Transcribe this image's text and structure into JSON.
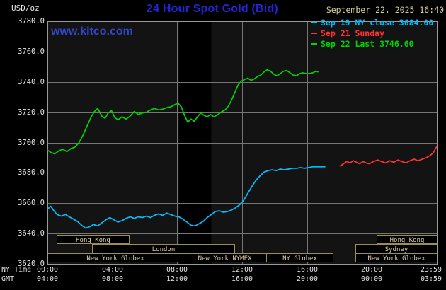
{
  "header": {
    "units_label": "USD/oz",
    "title": "24 Hour Spot Gold (Bid)",
    "datetime": "September 22, 2025 16:40",
    "website": "www.kitco.com"
  },
  "colors": {
    "title": "#2424d6",
    "website_link": "#3347cc",
    "tan_text": "#d9cfa3",
    "white_text": "#e6e6e6",
    "plot_bg": "#131313",
    "band": "#000000",
    "grid": "#757575",
    "border": "#9a9a9a",
    "session_border": "#9a8f4f",
    "session_text": "#d9cfa3",
    "cyan": "#00bfff",
    "red": "#ff3434",
    "green": "#00d400"
  },
  "legend": [
    {
      "marker_color": "#00bfff",
      "label": "Sep 19 NY close 3684.00"
    },
    {
      "marker_color": "#ff3434",
      "label": "Sep 21 Sunday"
    },
    {
      "marker_color": "#00d400",
      "label": "Sep 22 Last 3746.60"
    }
  ],
  "market_sessions": {
    "rows": [
      [
        {
          "label": "Hong Kong",
          "start": 0.55,
          "end": 5.0
        },
        {
          "label": "Hong Kong",
          "start": 20.3,
          "end": 24
        }
      ],
      [
        {
          "label": "London",
          "start": 2.75,
          "end": 11.5
        },
        {
          "label": "Sydney",
          "start": 19.0,
          "end": 24
        }
      ],
      [
        {
          "label": "New York Globex",
          "start": 0,
          "end": 8.33
        },
        {
          "label": "New York NYMEX",
          "start": 8.33,
          "end": 13.5
        },
        {
          "label": "NY Globex",
          "start": 13.5,
          "end": 17.6
        },
        {
          "label": "New York Globex",
          "start": 19.0,
          "end": 24
        }
      ]
    ]
  },
  "chart_data": {
    "type": "line",
    "title": "24 Hour Spot Gold (Bid)",
    "ylabel": "USD/oz",
    "ylim": [
      3620,
      3780
    ],
    "ytick_step": 20,
    "ytick_labels": [
      "3780.0",
      "3760.0",
      "3740.0",
      "3720.0",
      "3700.0",
      "3680.0",
      "3660.0",
      "3640.0",
      "3620.0"
    ],
    "x_hours_range": [
      0,
      24
    ],
    "xtick_hours": [
      0,
      4,
      8,
      12,
      16,
      20,
      24
    ],
    "x_axis_primary": {
      "name": "NY Time",
      "ticks": [
        "00:00",
        "04:00",
        "08:00",
        "12:00",
        "16:00",
        "20:00",
        "23:59"
      ]
    },
    "x_axis_secondary": {
      "name": "GMT",
      "ticks": [
        "04:00",
        "08:00",
        "12:00",
        "16:00",
        "20:00",
        "00:00",
        "03:59"
      ]
    },
    "grid": true,
    "legend_position": "top-right",
    "shaded_band_hours": [
      8.1,
      10.1
    ],
    "close_value": 3684.0,
    "last_value": 3746.6,
    "series": [
      {
        "id": "sep19-ny-close",
        "name": "Sep 19 NY close",
        "color": "#00bfff",
        "points": [
          [
            0,
            3656
          ],
          [
            0.2,
            3658
          ],
          [
            0.4,
            3655
          ],
          [
            0.6,
            3652.5
          ],
          [
            0.85,
            3651.5
          ],
          [
            1.1,
            3652.5
          ],
          [
            1.35,
            3651
          ],
          [
            1.6,
            3649.5
          ],
          [
            1.85,
            3648
          ],
          [
            2.1,
            3645.5
          ],
          [
            2.35,
            3643.5
          ],
          [
            2.6,
            3644.5
          ],
          [
            2.85,
            3646
          ],
          [
            3.1,
            3645
          ],
          [
            3.35,
            3647
          ],
          [
            3.6,
            3649
          ],
          [
            3.85,
            3650.5
          ],
          [
            4.1,
            3649
          ],
          [
            4.35,
            3647.5
          ],
          [
            4.6,
            3648.5
          ],
          [
            4.85,
            3650
          ],
          [
            5.1,
            3651
          ],
          [
            5.35,
            3650
          ],
          [
            5.6,
            3651
          ],
          [
            5.85,
            3650.5
          ],
          [
            6.1,
            3651.5
          ],
          [
            6.35,
            3650.5
          ],
          [
            6.6,
            3652
          ],
          [
            6.85,
            3653
          ],
          [
            7.1,
            3652
          ],
          [
            7.35,
            3653.5
          ],
          [
            7.6,
            3652.5
          ],
          [
            7.85,
            3651.5
          ],
          [
            8.1,
            3651
          ],
          [
            8.35,
            3649.5
          ],
          [
            8.6,
            3647.5
          ],
          [
            8.85,
            3645.5
          ],
          [
            9.1,
            3645
          ],
          [
            9.35,
            3646.5
          ],
          [
            9.6,
            3648
          ],
          [
            9.85,
            3650.5
          ],
          [
            10.1,
            3652.5
          ],
          [
            10.35,
            3654.5
          ],
          [
            10.6,
            3655
          ],
          [
            10.85,
            3654
          ],
          [
            11.1,
            3654.5
          ],
          [
            11.35,
            3655.5
          ],
          [
            11.6,
            3657
          ],
          [
            11.85,
            3659
          ],
          [
            12.1,
            3662
          ],
          [
            12.35,
            3666.5
          ],
          [
            12.6,
            3671
          ],
          [
            12.85,
            3675
          ],
          [
            13.1,
            3678
          ],
          [
            13.35,
            3680.5
          ],
          [
            13.6,
            3681.5
          ],
          [
            13.85,
            3682
          ],
          [
            14.1,
            3681.5
          ],
          [
            14.35,
            3682.5
          ],
          [
            14.6,
            3682
          ],
          [
            14.85,
            3682.5
          ],
          [
            15.1,
            3683
          ],
          [
            15.35,
            3683
          ],
          [
            15.6,
            3683.5
          ],
          [
            15.85,
            3683
          ],
          [
            16.1,
            3683.5
          ],
          [
            16.35,
            3684
          ],
          [
            16.6,
            3684
          ],
          [
            16.85,
            3684
          ],
          [
            17.1,
            3684
          ]
        ]
      },
      {
        "id": "sep21-sunday",
        "name": "Sep 21 Sunday",
        "color": "#ff3434",
        "points": [
          [
            18.05,
            3684.5
          ],
          [
            18.25,
            3686
          ],
          [
            18.45,
            3687.5
          ],
          [
            18.65,
            3686.5
          ],
          [
            18.85,
            3688
          ],
          [
            19.05,
            3687
          ],
          [
            19.25,
            3686
          ],
          [
            19.45,
            3687.5
          ],
          [
            19.65,
            3686.5
          ],
          [
            19.85,
            3686
          ],
          [
            20.1,
            3687.5
          ],
          [
            20.35,
            3688.5
          ],
          [
            20.6,
            3687.5
          ],
          [
            20.85,
            3686.5
          ],
          [
            21.1,
            3688
          ],
          [
            21.35,
            3687
          ],
          [
            21.6,
            3688.5
          ],
          [
            21.85,
            3687.5
          ],
          [
            22.1,
            3686.5
          ],
          [
            22.35,
            3688
          ],
          [
            22.6,
            3689
          ],
          [
            22.85,
            3688
          ],
          [
            23.1,
            3689
          ],
          [
            23.35,
            3690
          ],
          [
            23.6,
            3691.5
          ],
          [
            23.8,
            3693.5
          ],
          [
            23.98,
            3697
          ]
        ]
      },
      {
        "id": "sep22-current",
        "name": "Sep 22",
        "color": "#00d400",
        "points": [
          [
            0,
            3695
          ],
          [
            0.2,
            3693.5
          ],
          [
            0.45,
            3692.5
          ],
          [
            0.7,
            3694.5
          ],
          [
            0.95,
            3695.5
          ],
          [
            1.2,
            3694
          ],
          [
            1.45,
            3696
          ],
          [
            1.7,
            3697
          ],
          [
            1.95,
            3700
          ],
          [
            2.2,
            3705
          ],
          [
            2.45,
            3711
          ],
          [
            2.7,
            3717
          ],
          [
            2.9,
            3720.5
          ],
          [
            3.1,
            3722.5
          ],
          [
            3.35,
            3717.5
          ],
          [
            3.55,
            3716
          ],
          [
            3.75,
            3719.5
          ],
          [
            3.95,
            3721
          ],
          [
            4.15,
            3716.5
          ],
          [
            4.35,
            3715
          ],
          [
            4.6,
            3717
          ],
          [
            4.85,
            3715.5
          ],
          [
            5.1,
            3717.5
          ],
          [
            5.35,
            3720.5
          ],
          [
            5.6,
            3718.5
          ],
          [
            5.85,
            3719.5
          ],
          [
            6.1,
            3720
          ],
          [
            6.35,
            3721.5
          ],
          [
            6.6,
            3722.5
          ],
          [
            6.85,
            3721.5
          ],
          [
            7.1,
            3722
          ],
          [
            7.35,
            3723
          ],
          [
            7.6,
            3723.5
          ],
          [
            7.85,
            3725
          ],
          [
            8.05,
            3726
          ],
          [
            8.25,
            3723.5
          ],
          [
            8.45,
            3718
          ],
          [
            8.65,
            3713.5
          ],
          [
            8.85,
            3715.5
          ],
          [
            9.05,
            3714
          ],
          [
            9.25,
            3717
          ],
          [
            9.45,
            3719.5
          ],
          [
            9.65,
            3718
          ],
          [
            9.85,
            3717
          ],
          [
            10.05,
            3718.5
          ],
          [
            10.25,
            3717
          ],
          [
            10.45,
            3718
          ],
          [
            10.7,
            3720
          ],
          [
            10.95,
            3721.5
          ],
          [
            11.15,
            3724
          ],
          [
            11.35,
            3728
          ],
          [
            11.55,
            3733
          ],
          [
            11.75,
            3738
          ],
          [
            11.95,
            3740.5
          ],
          [
            12.15,
            3741.5
          ],
          [
            12.35,
            3742.5
          ],
          [
            12.55,
            3741
          ],
          [
            12.75,
            3742
          ],
          [
            12.95,
            3743.5
          ],
          [
            13.15,
            3744.5
          ],
          [
            13.35,
            3746.5
          ],
          [
            13.55,
            3748
          ],
          [
            13.75,
            3747
          ],
          [
            13.95,
            3745
          ],
          [
            14.15,
            3744
          ],
          [
            14.35,
            3745.5
          ],
          [
            14.55,
            3747
          ],
          [
            14.75,
            3747.5
          ],
          [
            14.95,
            3746
          ],
          [
            15.15,
            3744.5
          ],
          [
            15.35,
            3744
          ],
          [
            15.55,
            3745.5
          ],
          [
            15.75,
            3746
          ],
          [
            15.95,
            3745.5
          ],
          [
            16.15,
            3745.5
          ],
          [
            16.35,
            3746
          ],
          [
            16.55,
            3747
          ],
          [
            16.67,
            3746.6
          ]
        ]
      }
    ]
  }
}
